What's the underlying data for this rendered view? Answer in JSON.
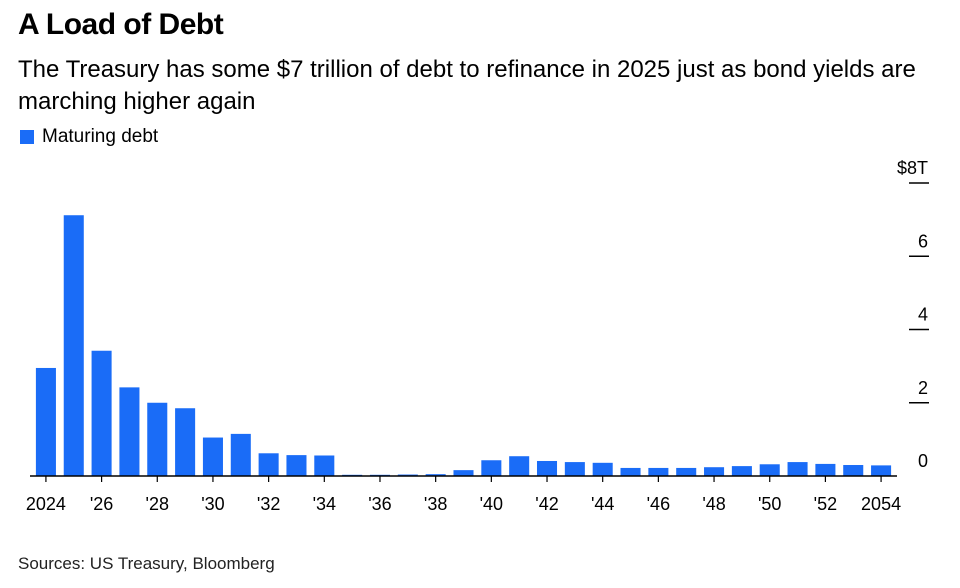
{
  "header": {
    "title": "A Load of Debt",
    "subtitle": "The Treasury has some $7 trillion of debt to refinance in 2025 just as bond yields are marching higher again"
  },
  "legend": {
    "label": "Maturing debt"
  },
  "source": "Sources: US Treasury, Bloomberg",
  "colors": {
    "bar": "#1a6cf7",
    "axis": "#000000"
  },
  "chart_data": {
    "type": "bar",
    "title": "A Load of Debt",
    "subtitle": "The Treasury has some $7 trillion of debt to refinance in 2025 just as bond yields are marching higher again",
    "series": [
      {
        "name": "Maturing debt",
        "values": [
          2.95,
          7.12,
          3.42,
          2.42,
          2.0,
          1.85,
          1.05,
          1.15,
          0.62,
          0.57,
          0.56,
          0.03,
          0.03,
          0.04,
          0.05,
          0.16,
          0.43,
          0.54,
          0.41,
          0.38,
          0.36,
          0.22,
          0.22,
          0.22,
          0.24,
          0.27,
          0.32,
          0.38,
          0.33,
          0.3,
          0.29
        ]
      }
    ],
    "x": [
      2024,
      2025,
      2026,
      2027,
      2028,
      2029,
      2030,
      2031,
      2032,
      2033,
      2034,
      2035,
      2036,
      2037,
      2038,
      2039,
      2040,
      2041,
      2042,
      2043,
      2044,
      2045,
      2046,
      2047,
      2048,
      2049,
      2050,
      2051,
      2052,
      2053,
      2054
    ],
    "x_tick_labels": [
      {
        "x": 2024,
        "label": "2024"
      },
      {
        "x": 2026,
        "label": "'26"
      },
      {
        "x": 2028,
        "label": "'28"
      },
      {
        "x": 2030,
        "label": "'30"
      },
      {
        "x": 2032,
        "label": "'32"
      },
      {
        "x": 2034,
        "label": "'34"
      },
      {
        "x": 2036,
        "label": "'36"
      },
      {
        "x": 2038,
        "label": "'38"
      },
      {
        "x": 2040,
        "label": "'40"
      },
      {
        "x": 2042,
        "label": "'42"
      },
      {
        "x": 2044,
        "label": "'44"
      },
      {
        "x": 2046,
        "label": "'46"
      },
      {
        "x": 2048,
        "label": "'48"
      },
      {
        "x": 2050,
        "label": "'50"
      },
      {
        "x": 2052,
        "label": "'52"
      },
      {
        "x": 2054,
        "label": "2054"
      }
    ],
    "y_ticks": [
      {
        "value": 0,
        "label": "0"
      },
      {
        "value": 2,
        "label": "2"
      },
      {
        "value": 4,
        "label": "4"
      },
      {
        "value": 6,
        "label": "6"
      },
      {
        "value": 8,
        "label": "$8T"
      }
    ],
    "ylim": [
      0,
      8
    ],
    "y_axis_position": "right",
    "grid": false,
    "legend_position": "top-left"
  }
}
